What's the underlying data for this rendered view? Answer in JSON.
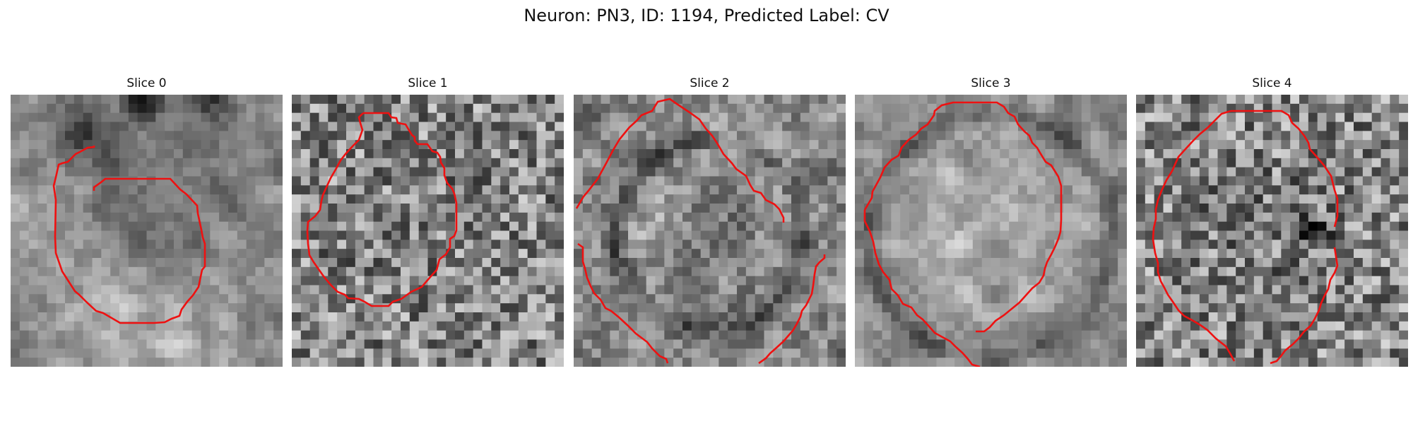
{
  "figure": {
    "title": "Neuron: PN3, ID: 1194, Predicted Label: CV"
  },
  "slices": [
    {
      "title": "Slice 0",
      "seed": 101,
      "blur": 2,
      "spots": [
        [
          0.28,
          0.15,
          0.12,
          -0.9
        ],
        [
          0.5,
          0.02,
          0.08,
          -0.6
        ],
        [
          0.75,
          0.02,
          0.08,
          -0.7
        ],
        [
          0.5,
          0.85,
          0.3,
          0.5
        ],
        [
          0.1,
          0.5,
          0.25,
          0.35
        ],
        [
          0.5,
          0.5,
          0.28,
          -0.35
        ]
      ]
    },
    {
      "title": "Slice 1",
      "seed": 202,
      "blur": 0,
      "spots": [
        [
          0.5,
          0.5,
          0.35,
          -0.1
        ]
      ]
    },
    {
      "title": "Slice 2",
      "seed": 303,
      "blur": 1,
      "spots": [
        [
          0.3,
          0.45,
          0.12,
          0.45
        ],
        [
          0.8,
          0.45,
          0.12,
          0.45
        ],
        [
          0.5,
          0.2,
          0.12,
          0.35
        ],
        [
          0.5,
          0.5,
          0.15,
          -0.3
        ]
      ],
      "ring": 0.35
    },
    {
      "title": "Slice 3",
      "seed": 404,
      "blur": 2,
      "spots": [
        [
          0.5,
          0.5,
          0.38,
          0.45
        ],
        [
          0.5,
          0.05,
          0.1,
          0.2
        ]
      ],
      "ring": 0.45
    },
    {
      "title": "Slice 4",
      "seed": 505,
      "blur": 0,
      "spots": [
        [
          0.65,
          0.5,
          0.06,
          -0.8
        ],
        [
          0.5,
          0.5,
          0.3,
          -0.15
        ]
      ]
    }
  ],
  "colors": {
    "contour": "#ee1111"
  }
}
